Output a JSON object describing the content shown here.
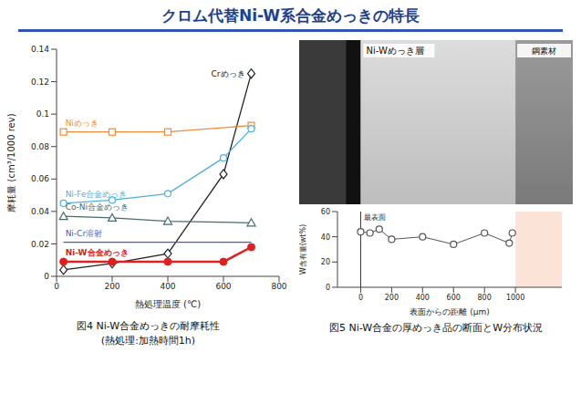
{
  "title": "クロム代替Ni-W系合金めっきの特長",
  "chart_data": [
    {
      "type": "line",
      "title": "図4 Ni-W合金めっきの耐摩耗性",
      "subtitle": "(熱処理:加熱時間1h)",
      "x_label": "熱処理温度 (℃)",
      "y_label": "摩耗量 (cm³/1000 rev)",
      "xlim": [
        0,
        800
      ],
      "xticks": [
        0,
        200,
        400,
        600,
        800
      ],
      "ylim": [
        0,
        0.14
      ],
      "yticks": [
        0,
        0.02,
        0.04,
        0.06,
        0.08,
        0.1,
        0.12,
        0.14
      ],
      "grid": false,
      "series": [
        {
          "name": "Crめっき",
          "color": "#222222",
          "marker": "diamond",
          "line_style": "solid",
          "x": [
            25,
            200,
            400,
            600,
            700
          ],
          "values": [
            0.004,
            0.008,
            0.014,
            0.063,
            0.125
          ]
        },
        {
          "name": "Niめっき",
          "color": "#f08c3c",
          "marker": "square",
          "line_style": "solid",
          "x": [
            25,
            200,
            400,
            700
          ],
          "values": [
            0.089,
            0.089,
            0.089,
            0.093
          ]
        },
        {
          "name": "Ni-Fe合金めっき",
          "color": "#4fb0e0",
          "marker": "circle",
          "line_style": "solid",
          "x": [
            25,
            200,
            400,
            600,
            700
          ],
          "values": [
            0.045,
            0.047,
            0.051,
            0.073,
            0.091
          ]
        },
        {
          "name": "Co-Ni合金めっき",
          "color": "#4a6a6a",
          "marker": "triangle",
          "line_style": "solid",
          "x": [
            25,
            200,
            400,
            700
          ],
          "values": [
            0.037,
            0.036,
            0.034,
            0.033
          ]
        },
        {
          "name": "Ni-Cr溶射",
          "color": "#3a5fcd",
          "marker": "none",
          "line_style": "solid",
          "x": [
            25,
            200,
            400,
            700
          ],
          "values": [
            0.021,
            0.021,
            0.021,
            0.021
          ]
        },
        {
          "name": "Ni-W合金めっき",
          "color": "#e02020",
          "marker": "filled_circle",
          "line_style": "solid",
          "x": [
            25,
            200,
            400,
            600,
            700
          ],
          "values": [
            0.009,
            0.009,
            0.009,
            0.009,
            0.018
          ]
        }
      ]
    },
    {
      "type": "line",
      "title": "図5 Ni-W合金の厚めっき品の断面とW分布状況",
      "photo_labels": [
        "Ni-Wめっき層",
        "鋼素材"
      ],
      "annotations": [
        "最表面"
      ],
      "x_label": "表面からの距離 (μm)",
      "y_label": "W含有量(wt%)",
      "xlim": [
        -150,
        1300
      ],
      "xticks": [
        0,
        200,
        400,
        600,
        800,
        1000
      ],
      "ylim": [
        0,
        60
      ],
      "yticks": [
        0,
        20,
        40,
        60
      ],
      "grid": false,
      "series": [
        {
          "name": "W含有量",
          "color": "#555555",
          "marker": "circle",
          "line_style": "solid",
          "x": [
            0,
            60,
            120,
            200,
            400,
            600,
            800,
            960,
            980
          ],
          "values": [
            44,
            43,
            46,
            38,
            40,
            34,
            43,
            35,
            43
          ]
        }
      ]
    }
  ]
}
